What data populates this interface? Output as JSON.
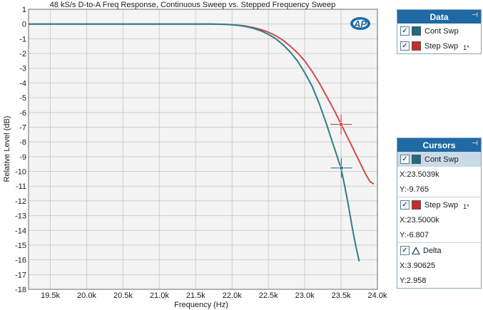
{
  "chart_data": {
    "type": "line",
    "title": "48 kS/s D-to-A Freq Response, Continuous Sweep vs. Stepped Frequency Sweep",
    "xlabel": "Frequency (Hz)",
    "ylabel": "Relative Level (dB)",
    "xlim": [
      19200,
      24000
    ],
    "ylim": [
      -18,
      1
    ],
    "x_ticks": [
      19500,
      20000,
      20500,
      21000,
      21500,
      22000,
      22500,
      23000,
      23500,
      24000
    ],
    "x_tick_labels": [
      "19.5k",
      "20.0k",
      "20.5k",
      "21.0k",
      "21.5k",
      "22.0k",
      "22.5k",
      "23.0k",
      "23.5k",
      "24.0k"
    ],
    "y_ticks": [
      1,
      0,
      -1,
      -2,
      -3,
      -4,
      -5,
      -6,
      -7,
      -8,
      -9,
      -10,
      -11,
      -12,
      -13,
      -14,
      -15,
      -16,
      -17,
      -18
    ],
    "y_tick_labels": [
      "1",
      "0",
      "-1",
      "-2",
      "-3",
      "-4",
      "-5",
      "-6",
      "-7",
      "-8",
      "-9",
      "-10",
      "-11",
      "-12",
      "-13",
      "-14",
      "-15",
      "-16",
      "-17",
      "-18"
    ],
    "grid": true,
    "series": [
      {
        "name": "Cont Swp",
        "color": "#2e7d8c",
        "x": [
          19200,
          20000,
          21000,
          21700,
          21900,
          22000,
          22100,
          22200,
          22300,
          22400,
          22500,
          22600,
          22700,
          22800,
          22900,
          23000,
          23100,
          23200,
          23300,
          23400,
          23500,
          23550,
          23600,
          23650,
          23700,
          23750
        ],
        "y": [
          0,
          0,
          0,
          0,
          -0.02,
          -0.05,
          -0.1,
          -0.18,
          -0.3,
          -0.47,
          -0.7,
          -1.0,
          -1.4,
          -1.9,
          -2.5,
          -3.3,
          -4.2,
          -5.4,
          -6.8,
          -8.3,
          -9.8,
          -11.0,
          -12.3,
          -13.7,
          -15.0,
          -16.1
        ]
      },
      {
        "name": "Step Swp",
        "color": "#d24b4b",
        "x": [
          19200,
          20000,
          21000,
          21700,
          21900,
          22000,
          22100,
          22200,
          22300,
          22400,
          22500,
          22600,
          22700,
          22800,
          22900,
          23000,
          23100,
          23200,
          23300,
          23400,
          23500,
          23600,
          23700,
          23800,
          23850,
          23900,
          23950
        ],
        "y": [
          0,
          0,
          0,
          0,
          -0.02,
          -0.05,
          -0.09,
          -0.15,
          -0.25,
          -0.38,
          -0.55,
          -0.8,
          -1.1,
          -1.5,
          -1.95,
          -2.5,
          -3.2,
          -4.0,
          -4.9,
          -5.8,
          -6.8,
          -7.8,
          -8.8,
          -9.8,
          -10.3,
          -10.7,
          -10.85
        ]
      }
    ],
    "cursors": [
      {
        "series": "Cont Swp",
        "x": 23503.9,
        "y": -9.765
      },
      {
        "series": "Step Swp",
        "x": 23500.0,
        "y": -6.807
      }
    ]
  },
  "logo_text": "AP",
  "data_panel": {
    "title": "Data",
    "items": [
      {
        "label": "Cont Swp",
        "color": "#1a6e80",
        "checked": true
      },
      {
        "label": "Step Swp",
        "color": "#cc2b2b",
        "checked": true,
        "sub": "1*"
      }
    ]
  },
  "cursors_panel": {
    "title": "Cursors",
    "cont": {
      "label": "Cont Swp",
      "color": "#1a6e80",
      "x": "X:23.5039k",
      "y": "Y:-9.765"
    },
    "step": {
      "label": "Step Swp",
      "color": "#cc2b2b",
      "sub": "1*",
      "x": "X:23.5000k",
      "y": "Y:-6.807"
    },
    "delta": {
      "label": "Delta",
      "x": "X:3.90625",
      "y": "Y:2.958"
    }
  },
  "pin_glyph": "⊣"
}
